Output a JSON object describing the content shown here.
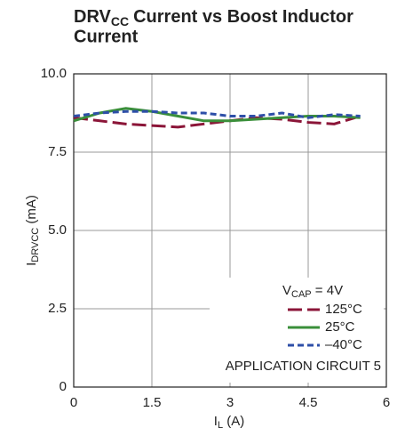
{
  "chart_data": {
    "type": "line",
    "title": {
      "main": "DRV",
      "sub": "CC",
      "rest": [
        "Current vs Boost Inductor",
        "Current"
      ]
    },
    "x_label": {
      "main": "I",
      "sub": "L",
      "rest": " (A)"
    },
    "y_label": {
      "main": "I",
      "sub": "DRVCC",
      "rest": " (mA)"
    },
    "legend_title": {
      "main": "V",
      "sub": "CAP",
      "rest": " = 4V"
    },
    "annotation": "APPLICATION CIRCUIT 5",
    "x": [
      0,
      0.5,
      1,
      1.5,
      2,
      2.5,
      3,
      3.5,
      4,
      4.5,
      5,
      5.5
    ],
    "series": [
      {
        "name": "125°C",
        "color": "#8b1538",
        "values": [
          8.6,
          8.5,
          8.4,
          8.35,
          8.3,
          8.4,
          8.5,
          8.6,
          8.55,
          8.45,
          8.4,
          8.65
        ]
      },
      {
        "name": "25°C",
        "color": "#3a8f3a",
        "values": [
          8.5,
          8.75,
          8.9,
          8.8,
          8.65,
          8.5,
          8.5,
          8.55,
          8.6,
          8.65,
          8.65,
          8.6
        ]
      },
      {
        "name": "–40°C",
        "color": "#2e4fa8",
        "values": [
          8.65,
          8.75,
          8.8,
          8.8,
          8.75,
          8.75,
          8.65,
          8.65,
          8.75,
          8.6,
          8.7,
          8.65
        ]
      }
    ],
    "xlim": [
      0,
      6
    ],
    "xticks": [
      0,
      1.5,
      3,
      4.5,
      6
    ],
    "ylim": [
      0,
      10
    ],
    "yticks": [
      0,
      2.5,
      {
        "value": 5,
        "label": "5.0"
      },
      7.5,
      {
        "value": 10,
        "label": "10.0"
      }
    ],
    "grid": true
  }
}
